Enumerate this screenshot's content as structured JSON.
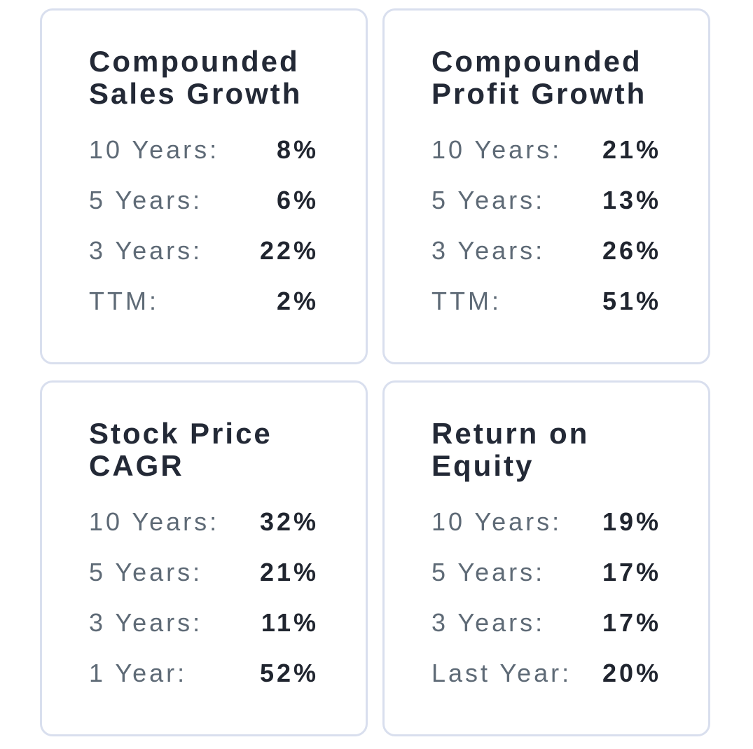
{
  "colors": {
    "background": "#ffffff",
    "card_background": "#ffffff",
    "card_border": "#d9dfee",
    "title_text": "#232936",
    "label_text": "#5e6a76",
    "value_text": "#20252f"
  },
  "cards": [
    {
      "title": "Compounded Sales Growth",
      "rows": [
        {
          "label": "10 Years:",
          "value": "8%"
        },
        {
          "label": "5 Years:",
          "value": "6%"
        },
        {
          "label": "3 Years:",
          "value": "22%"
        },
        {
          "label": "TTM:",
          "value": "2%"
        }
      ]
    },
    {
      "title": "Compounded Profit Growth",
      "rows": [
        {
          "label": "10 Years:",
          "value": "21%"
        },
        {
          "label": "5 Years:",
          "value": "13%"
        },
        {
          "label": "3 Years:",
          "value": "26%"
        },
        {
          "label": "TTM:",
          "value": "51%"
        }
      ]
    },
    {
      "title": "Stock Price CAGR",
      "rows": [
        {
          "label": "10 Years:",
          "value": "32%"
        },
        {
          "label": "5 Years:",
          "value": "21%"
        },
        {
          "label": "3 Years:",
          "value": "11%"
        },
        {
          "label": "1 Year:",
          "value": "52%"
        }
      ]
    },
    {
      "title": "Return on Equity",
      "rows": [
        {
          "label": "10 Years:",
          "value": "19%"
        },
        {
          "label": "5 Years:",
          "value": "17%"
        },
        {
          "label": "3 Years:",
          "value": "17%"
        },
        {
          "label": "Last Year:",
          "value": "20%"
        }
      ]
    }
  ]
}
